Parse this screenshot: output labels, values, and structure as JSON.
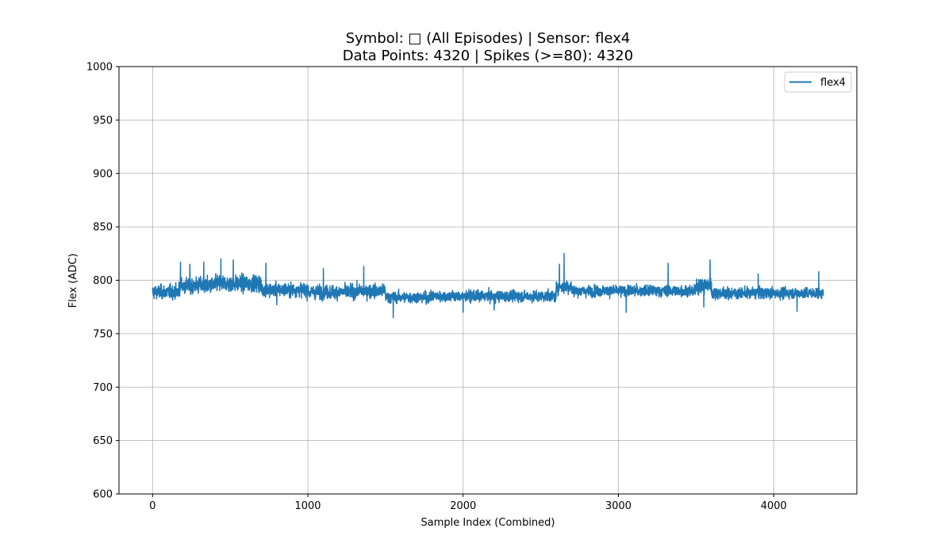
{
  "chart_data": {
    "type": "line",
    "title_line1": "Symbol: □ (All Episodes) | Sensor: flex4",
    "title_line2": "Data Points: 4320 | Spikes (>=80): 4320",
    "xlabel": "Sample Index (Combined)",
    "ylabel": "Flex (ADC)",
    "xlim": [
      -216,
      4535
    ],
    "ylim": [
      600,
      1000
    ],
    "x_ticks": [
      0,
      1000,
      2000,
      3000,
      4000
    ],
    "y_ticks": [
      600,
      650,
      700,
      750,
      800,
      850,
      900,
      950,
      1000
    ],
    "grid": true,
    "legend_position": "top-right",
    "colors": {
      "series": "#1f77b4",
      "grid": "#b0b0b0",
      "axis": "#000000"
    },
    "series": [
      {
        "name": "flex4",
        "x_start": 0,
        "x_end": 4319,
        "segments": [
          {
            "from": 0,
            "to": 170,
            "mean": 789,
            "spread": 5
          },
          {
            "from": 170,
            "to": 400,
            "mean": 795,
            "spread": 6
          },
          {
            "from": 400,
            "to": 700,
            "mean": 797,
            "spread": 6
          },
          {
            "from": 700,
            "to": 1000,
            "mean": 791,
            "spread": 5
          },
          {
            "from": 1000,
            "to": 1300,
            "mean": 789,
            "spread": 5
          },
          {
            "from": 1300,
            "to": 1500,
            "mean": 790,
            "spread": 5
          },
          {
            "from": 1500,
            "to": 1800,
            "mean": 784,
            "spread": 4
          },
          {
            "from": 1800,
            "to": 2600,
            "mean": 785,
            "spread": 4
          },
          {
            "from": 2600,
            "to": 2700,
            "mean": 794,
            "spread": 5
          },
          {
            "from": 2700,
            "to": 3500,
            "mean": 790,
            "spread": 4
          },
          {
            "from": 3500,
            "to": 3600,
            "mean": 795,
            "spread": 6
          },
          {
            "from": 3600,
            "to": 4320,
            "mean": 788,
            "spread": 4
          }
        ],
        "extremes": [
          {
            "x": 180,
            "y": 817
          },
          {
            "x": 240,
            "y": 815
          },
          {
            "x": 330,
            "y": 817
          },
          {
            "x": 440,
            "y": 820
          },
          {
            "x": 520,
            "y": 819
          },
          {
            "x": 730,
            "y": 816
          },
          {
            "x": 1100,
            "y": 811
          },
          {
            "x": 1360,
            "y": 813
          },
          {
            "x": 1550,
            "y": 765
          },
          {
            "x": 2000,
            "y": 770
          },
          {
            "x": 2650,
            "y": 825
          },
          {
            "x": 2620,
            "y": 815
          },
          {
            "x": 3050,
            "y": 770
          },
          {
            "x": 3320,
            "y": 816
          },
          {
            "x": 3590,
            "y": 819
          },
          {
            "x": 3550,
            "y": 775
          },
          {
            "x": 3900,
            "y": 806
          },
          {
            "x": 4150,
            "y": 771
          },
          {
            "x": 4290,
            "y": 808
          },
          {
            "x": 800,
            "y": 777
          },
          {
            "x": 2200,
            "y": 772
          }
        ]
      }
    ]
  }
}
